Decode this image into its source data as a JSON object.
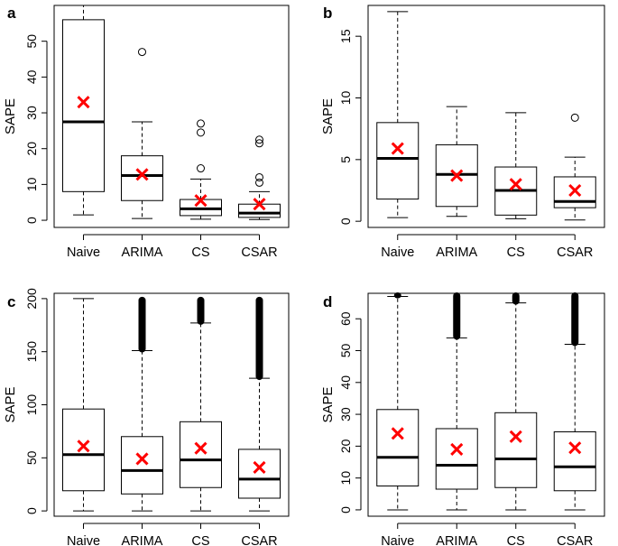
{
  "chart_data": [
    {
      "panel": "a",
      "type": "boxplot",
      "ylabel": "SAPE",
      "ylim": [
        -2,
        60
      ],
      "yticks": [
        0,
        10,
        20,
        30,
        40,
        50
      ],
      "categories": [
        "Naive",
        "ARIMA",
        "CS",
        "CSAR"
      ],
      "boxes": [
        {
          "name": "Naive",
          "whisker_low": 1.5,
          "q1": 8,
          "median": 27.5,
          "q3": 56,
          "whisker_high": 60,
          "mean": 33,
          "outliers": []
        },
        {
          "name": "ARIMA",
          "whisker_low": 0.5,
          "q1": 5.5,
          "median": 12.5,
          "q3": 18,
          "whisker_high": 27.5,
          "mean": 12.8,
          "outliers": [
            47
          ]
        },
        {
          "name": "CS",
          "whisker_low": 0.3,
          "q1": 1.3,
          "median": 3.2,
          "q3": 5.8,
          "whisker_high": 11.5,
          "mean": 5.5,
          "outliers": [
            14.5,
            24.5,
            27
          ]
        },
        {
          "name": "CSAR",
          "whisker_low": 0.2,
          "q1": 0.8,
          "median": 2,
          "q3": 4.5,
          "whisker_high": 8,
          "mean": 4.5,
          "outliers": [
            10.5,
            12,
            21.5,
            22.5
          ]
        }
      ]
    },
    {
      "panel": "b",
      "type": "boxplot",
      "ylabel": "SAPE",
      "ylim": [
        -0.5,
        17.5
      ],
      "yticks": [
        0,
        5,
        10,
        15
      ],
      "categories": [
        "Naive",
        "ARIMA",
        "CS",
        "CSAR"
      ],
      "boxes": [
        {
          "name": "Naive",
          "whisker_low": 0.3,
          "q1": 1.8,
          "median": 5.1,
          "q3": 8,
          "whisker_high": 17,
          "mean": 5.9,
          "outliers": []
        },
        {
          "name": "ARIMA",
          "whisker_low": 0.4,
          "q1": 1.2,
          "median": 3.8,
          "q3": 6.2,
          "whisker_high": 9.3,
          "mean": 3.7,
          "outliers": []
        },
        {
          "name": "CS",
          "whisker_low": 0.2,
          "q1": 0.5,
          "median": 2.5,
          "q3": 4.4,
          "whisker_high": 8.8,
          "mean": 3,
          "outliers": []
        },
        {
          "name": "CSAR",
          "whisker_low": 0.1,
          "q1": 1.1,
          "median": 1.6,
          "q3": 3.6,
          "whisker_high": 5.2,
          "mean": 2.5,
          "outliers": [
            8.4
          ]
        }
      ]
    },
    {
      "panel": "c",
      "type": "boxplot",
      "ylabel": "SAPE",
      "ylim": [
        -5,
        205
      ],
      "yticks": [
        0,
        50,
        100,
        150,
        200
      ],
      "categories": [
        "Naive",
        "ARIMA",
        "CS",
        "CSAR"
      ],
      "boxes": [
        {
          "name": "Naive",
          "whisker_low": 0,
          "q1": 19,
          "median": 53,
          "q3": 96,
          "whisker_high": 200,
          "mean": 61,
          "outliers": [],
          "outlier_band": null
        },
        {
          "name": "ARIMA",
          "whisker_low": 0,
          "q1": 16,
          "median": 38,
          "q3": 70,
          "whisker_high": 151,
          "mean": 49,
          "outliers": [],
          "outlier_band": [
            151,
            200
          ]
        },
        {
          "name": "CS",
          "whisker_low": 0,
          "q1": 22,
          "median": 48,
          "q3": 84,
          "whisker_high": 177,
          "mean": 59,
          "outliers": [],
          "outlier_band": [
            177,
            200
          ]
        },
        {
          "name": "CSAR",
          "whisker_low": 0,
          "q1": 12,
          "median": 30,
          "q3": 58,
          "whisker_high": 125,
          "mean": 41,
          "outliers": [],
          "outlier_band": [
            125,
            200
          ]
        }
      ]
    },
    {
      "panel": "d",
      "type": "boxplot",
      "ylabel": "SAPE",
      "ylim": [
        -2,
        68
      ],
      "yticks": [
        0,
        10,
        20,
        30,
        40,
        50,
        60
      ],
      "categories": [
        "Naive",
        "ARIMA",
        "CS",
        "CSAR"
      ],
      "boxes": [
        {
          "name": "Naive",
          "whisker_low": 0,
          "q1": 7.5,
          "median": 16.5,
          "q3": 31.5,
          "whisker_high": 67,
          "mean": 24,
          "outliers": [],
          "outlier_band": [
            67,
            68
          ]
        },
        {
          "name": "ARIMA",
          "whisker_low": 0,
          "q1": 6.5,
          "median": 14,
          "q3": 25.5,
          "whisker_high": 54,
          "mean": 19,
          "outliers": [],
          "outlier_band": [
            54,
            68
          ]
        },
        {
          "name": "CS",
          "whisker_low": 0,
          "q1": 7,
          "median": 16,
          "q3": 30.5,
          "whisker_high": 65,
          "mean": 23,
          "outliers": [],
          "outlier_band": [
            65,
            68
          ]
        },
        {
          "name": "CSAR",
          "whisker_low": 0,
          "q1": 6,
          "median": 13.5,
          "q3": 24.5,
          "whisker_high": 52,
          "mean": 19.5,
          "outliers": [],
          "outlier_band": [
            52,
            68
          ]
        }
      ]
    }
  ]
}
